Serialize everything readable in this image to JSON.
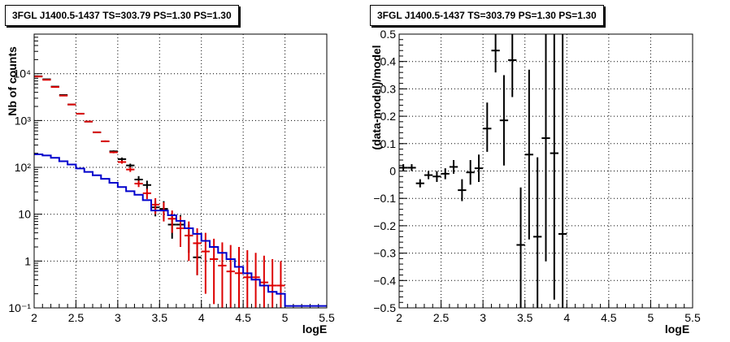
{
  "chart_data": [
    {
      "type": "line",
      "title": "3FGL J1400.5-1437 TS=303.79 PS=1.30 PS=1.30",
      "xlabel": "logE",
      "ylabel": "Nb of counts",
      "xlim": [
        2,
        5.5
      ],
      "ylim": [
        0.1,
        70000
      ],
      "yscale": "log",
      "grid": true,
      "x_ticks": [
        "2",
        "2.5",
        "3",
        "3.5",
        "4",
        "4.5",
        "5",
        "5.5"
      ],
      "y_ticks": [
        "10⁻¹",
        "1",
        "10",
        "10²",
        "10³",
        "10⁴"
      ],
      "series": [
        {
          "color": "#000000",
          "style": "errorbar",
          "x": [
            2.05,
            2.15,
            2.25,
            2.35,
            2.45,
            2.55,
            2.65,
            2.75,
            2.85,
            2.95,
            3.05,
            3.15,
            3.25,
            3.35,
            3.45,
            3.55,
            3.65,
            3.75,
            3.85,
            3.95
          ],
          "y": [
            8800,
            7600,
            5300,
            3500,
            2200,
            1400,
            950,
            560,
            360,
            220,
            150,
            110,
            55,
            42,
            14,
            13,
            6,
            6,
            3.5,
            1.2
          ],
          "ylo": [
            8700,
            7500,
            5200,
            3450,
            2150,
            1370,
            920,
            540,
            345,
            210,
            138,
            100,
            45,
            33,
            9,
            8,
            3,
            3,
            1.5,
            0.5
          ],
          "yhi": [
            8900,
            7700,
            5400,
            3550,
            2250,
            1430,
            980,
            580,
            375,
            230,
            162,
            120,
            65,
            52,
            19,
            19,
            9.5,
            9.5,
            6,
            2.5
          ]
        },
        {
          "color": "#dd0000",
          "style": "errorbar",
          "x": [
            2.05,
            2.15,
            2.25,
            2.35,
            2.45,
            2.55,
            2.65,
            2.75,
            2.85,
            2.95,
            3.05,
            3.15,
            3.25,
            3.35,
            3.45,
            3.55,
            3.65,
            3.75,
            3.85,
            3.95,
            4.05,
            4.15,
            4.25,
            4.35,
            4.45,
            4.55,
            4.65,
            4.75,
            4.85,
            4.95
          ],
          "y": [
            8700,
            7400,
            5200,
            3400,
            2200,
            1400,
            950,
            560,
            360,
            210,
            130,
            90,
            45,
            28,
            16,
            12,
            8,
            5,
            3.5,
            2.4,
            1.6,
            1.1,
            0.8,
            0.6,
            0.55,
            0.45,
            0.45,
            0.35,
            0.3,
            0.3
          ],
          "ylo": [
            8600,
            7300,
            5100,
            3350,
            2150,
            1370,
            920,
            540,
            345,
            200,
            120,
            80,
            38,
            21,
            10,
            7,
            4,
            2,
            1,
            0.5,
            0.2,
            0.12,
            0.1,
            0.1,
            0.1,
            0.1,
            0.1,
            0.1,
            0.1,
            0.1
          ],
          "yhi": [
            8800,
            7500,
            5300,
            3450,
            2250,
            1430,
            980,
            580,
            375,
            220,
            140,
            100,
            52,
            35,
            22,
            18,
            12,
            9,
            7,
            5,
            4,
            3,
            2.5,
            2.2,
            2,
            1.7,
            1.5,
            1.3,
            1.1,
            1
          ]
        },
        {
          "color": "#0000cc",
          "style": "step",
          "edges": [
            2.0,
            2.1,
            2.2,
            2.3,
            2.4,
            2.5,
            2.6,
            2.7,
            2.8,
            2.9,
            3.0,
            3.1,
            3.2,
            3.3,
            3.4,
            3.5,
            3.6,
            3.7,
            3.8,
            3.9,
            4.0,
            4.1,
            4.2,
            4.3,
            4.4,
            4.5,
            4.6,
            4.7,
            4.8,
            4.9,
            5.0,
            5.1,
            5.2,
            5.3,
            5.4,
            5.5
          ],
          "values": [
            190,
            180,
            160,
            135,
            115,
            95,
            80,
            68,
            57,
            47,
            38,
            31,
            26,
            20,
            12,
            12,
            9.5,
            7.2,
            5,
            3.8,
            2.7,
            2.0,
            1.5,
            1.1,
            0.75,
            0.55,
            0.4,
            0.3,
            0.22,
            0.2,
            0.11,
            0.11,
            0.11,
            0.11,
            0.11
          ]
        }
      ]
    },
    {
      "type": "scatter",
      "title": "3FGL J1400.5-1437 TS=303.79 PS=1.30 PS=1.30",
      "xlabel": "logE",
      "ylabel": "(data-model)/model",
      "xlim": [
        2,
        5.5
      ],
      "ylim": [
        -0.5,
        0.5
      ],
      "grid": true,
      "x_ticks": [
        "2",
        "2.5",
        "3",
        "3.5",
        "4",
        "4.5",
        "5",
        "5.5"
      ],
      "y_ticks": [
        "−0.5",
        "−0.4",
        "−0.3",
        "−0.2",
        "−0.1",
        "0",
        "0.1",
        "0.2",
        "0.3",
        "0.4",
        "0.5"
      ],
      "series": [
        {
          "color": "#000000",
          "style": "errorbar",
          "x": [
            2.05,
            2.15,
            2.25,
            2.35,
            2.45,
            2.55,
            2.65,
            2.75,
            2.85,
            2.95,
            3.05,
            3.15,
            3.25,
            3.35,
            3.45,
            3.55,
            3.65,
            3.75,
            3.85,
            3.95
          ],
          "y": [
            0.012,
            0.012,
            -0.045,
            -0.015,
            -0.02,
            -0.01,
            0.015,
            -0.07,
            -0.005,
            0.01,
            0.155,
            0.44,
            0.185,
            0.405,
            -0.27,
            0.06,
            -0.24,
            0.12,
            0.065,
            -0.23
          ],
          "ylo": [
            0.0,
            0.0,
            -0.06,
            -0.03,
            -0.04,
            -0.03,
            -0.01,
            -0.11,
            -0.05,
            -0.04,
            0.07,
            0.36,
            0.02,
            0.27,
            -0.5,
            -0.25,
            -0.5,
            -0.33,
            -0.47,
            -0.5
          ],
          "yhi": [
            0.025,
            0.025,
            -0.03,
            0.0,
            0.0,
            0.01,
            0.04,
            -0.03,
            0.04,
            0.06,
            0.25,
            0.5,
            0.35,
            0.5,
            -0.06,
            0.37,
            0.05,
            0.5,
            0.5,
            0.5
          ]
        }
      ]
    }
  ]
}
